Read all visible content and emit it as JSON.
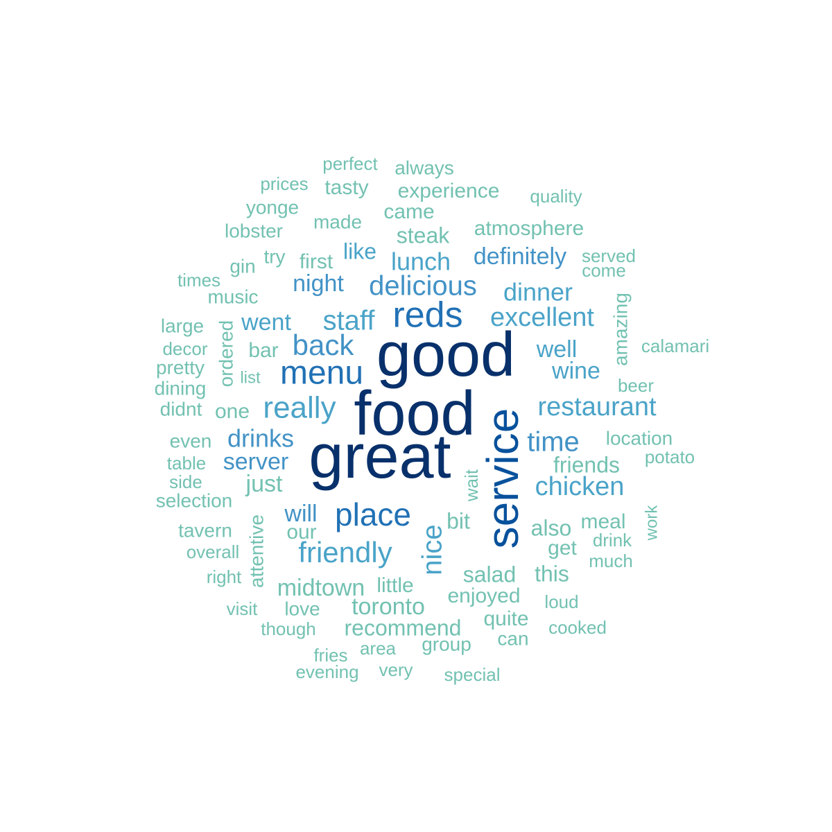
{
  "words": [
    "perfect",
    "always",
    "prices",
    "tasty",
    "experience",
    "quality",
    "yonge",
    "made",
    "came",
    "lobster",
    "steak",
    "atmosphere",
    "like",
    "try",
    "first",
    "lunch",
    "definitely",
    "served",
    "gin",
    "come",
    "times",
    "night",
    "delicious",
    "music",
    "dinner",
    "amazing",
    "reds",
    "staff",
    "excellent",
    "large",
    "went",
    "ordered",
    "calamari",
    "decor",
    "back",
    "bar",
    "good",
    "well",
    "pretty",
    "menu",
    "wine",
    "list",
    "dining",
    "beer",
    "service",
    "didnt",
    "one",
    "really",
    "food",
    "restaurant",
    "even",
    "drinks",
    "time",
    "location",
    "table",
    "server",
    "friends",
    "potato",
    "great",
    "side",
    "just",
    "wait",
    "chicken",
    "selection",
    "attentive",
    "will",
    "place",
    "nice",
    "bit",
    "meal",
    "work",
    "tavern",
    "our",
    "also",
    "drink",
    "overall",
    "friendly",
    "get",
    "much",
    "right",
    "salad",
    "this",
    "midtown",
    "little",
    "enjoyed",
    "visit",
    "love",
    "toronto",
    "loud",
    "quite",
    "though",
    "recommend",
    "cooked",
    "can",
    "group",
    "area",
    "fries",
    "evening",
    "very",
    "special"
  ]
}
